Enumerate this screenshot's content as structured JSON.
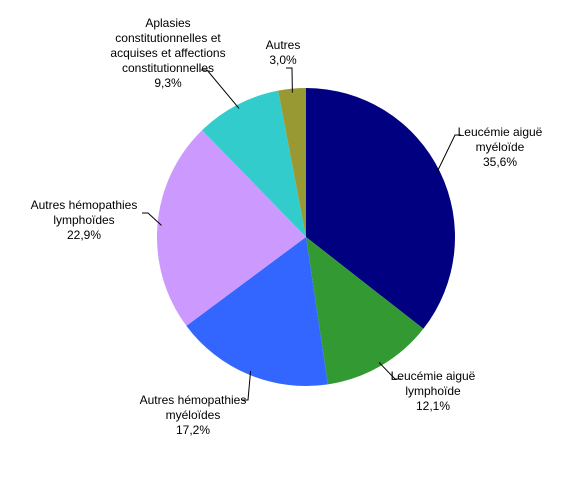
{
  "chart_data": {
    "type": "pie",
    "categories": [
      "Leucémie aiguë myéloïde",
      "Leucémie aiguë lymphoïde",
      "Autres hémopathies myéloïdes",
      "Autres hémopathies lymphoïdes",
      "Aplasies constitutionnelles et acquises et affections constitutionnelles",
      "Autres"
    ],
    "values": [
      35.6,
      12.1,
      17.2,
      22.9,
      9.3,
      3.0
    ],
    "value_labels": [
      "35,6%",
      "12,1%",
      "17,2%",
      "22,9%",
      "9,3%",
      "3,0%"
    ],
    "colors": [
      "#000080",
      "#339933",
      "#3366ff",
      "#cc99ff",
      "#33cccc",
      "#999933"
    ]
  }
}
